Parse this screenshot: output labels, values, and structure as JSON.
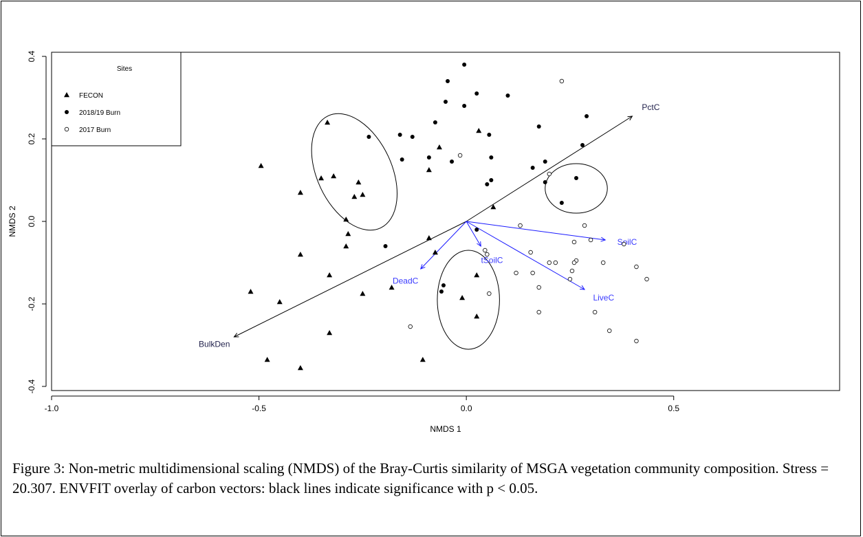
{
  "caption": "Figure 3: Non-metric multidimensional scaling (NMDS) of the Bray-Curtis similarity of MSGA vegetation community composition. Stress = 20.307. ENVFIT overlay of carbon vectors: black lines indicate significance with p < 0.05.",
  "chart_data": {
    "type": "scatter",
    "xlabel": "NMDS 1",
    "ylabel": "NMDS 2",
    "xlim": [
      -1.0,
      0.9
    ],
    "ylim": [
      -0.41,
      0.41
    ],
    "xticks": [
      {
        "value": -1.0,
        "label": "-1.0"
      },
      {
        "value": -0.5,
        "label": "-0.5"
      },
      {
        "value": 0.0,
        "label": "0.0"
      },
      {
        "value": 0.5,
        "label": "0.5"
      }
    ],
    "yticks": [
      {
        "value": -0.4,
        "label": "-0.4"
      },
      {
        "value": -0.2,
        "label": "-0.2"
      },
      {
        "value": 0.0,
        "label": "0.0"
      },
      {
        "value": 0.2,
        "label": "0.2"
      },
      {
        "value": 0.4,
        "label": "0.4"
      }
    ],
    "grid": false,
    "legend": {
      "title": "Sites",
      "position": "top-left",
      "entries": [
        {
          "label": "FECON",
          "marker": "triangle"
        },
        {
          "label": "2018/19 Burn",
          "marker": "filled-circle"
        },
        {
          "label": "2017 Burn",
          "marker": "open-circle"
        }
      ]
    },
    "series": [
      {
        "name": "FECON",
        "marker": "triangle",
        "points": [
          [
            -0.495,
            0.135
          ],
          [
            -0.335,
            0.24
          ],
          [
            -0.35,
            0.105
          ],
          [
            -0.32,
            0.11
          ],
          [
            -0.4,
            0.07
          ],
          [
            -0.26,
            0.095
          ],
          [
            -0.27,
            0.06
          ],
          [
            -0.25,
            0.065
          ],
          [
            -0.29,
            0.005
          ],
          [
            -0.285,
            -0.03
          ],
          [
            -0.29,
            -0.06
          ],
          [
            -0.4,
            -0.08
          ],
          [
            -0.33,
            -0.13
          ],
          [
            -0.52,
            -0.17
          ],
          [
            -0.45,
            -0.195
          ],
          [
            -0.25,
            -0.175
          ],
          [
            -0.33,
            -0.27
          ],
          [
            -0.48,
            -0.335
          ],
          [
            -0.4,
            -0.355
          ],
          [
            -0.18,
            -0.16
          ],
          [
            -0.09,
            -0.04
          ],
          [
            -0.075,
            -0.075
          ],
          [
            -0.105,
            -0.335
          ],
          [
            -0.01,
            -0.185
          ],
          [
            0.025,
            -0.13
          ],
          [
            0.025,
            -0.23
          ],
          [
            -0.09,
            0.125
          ],
          [
            -0.065,
            0.18
          ],
          [
            0.03,
            0.22
          ],
          [
            0.065,
            0.035
          ]
        ]
      },
      {
        "name": "2018/19 Burn",
        "marker": "filled-circle",
        "points": [
          [
            -0.005,
            0.38
          ],
          [
            -0.045,
            0.34
          ],
          [
            0.025,
            0.31
          ],
          [
            0.1,
            0.305
          ],
          [
            -0.05,
            0.29
          ],
          [
            -0.005,
            0.28
          ],
          [
            -0.075,
            0.24
          ],
          [
            0.055,
            0.21
          ],
          [
            -0.16,
            0.21
          ],
          [
            -0.13,
            0.205
          ],
          [
            -0.235,
            0.205
          ],
          [
            0.29,
            0.255
          ],
          [
            0.175,
            0.23
          ],
          [
            0.28,
            0.185
          ],
          [
            -0.155,
            0.15
          ],
          [
            -0.09,
            0.155
          ],
          [
            -0.035,
            0.145
          ],
          [
            0.06,
            0.155
          ],
          [
            0.19,
            0.145
          ],
          [
            0.16,
            0.13
          ],
          [
            0.265,
            0.105
          ],
          [
            0.06,
            0.1
          ],
          [
            0.05,
            0.09
          ],
          [
            0.19,
            0.095
          ],
          [
            0.23,
            0.045
          ],
          [
            0.025,
            -0.02
          ],
          [
            -0.195,
            -0.06
          ],
          [
            -0.055,
            -0.155
          ],
          [
            -0.06,
            -0.17
          ]
        ]
      },
      {
        "name": "2017 Burn",
        "marker": "open-circle",
        "points": [
          [
            0.23,
            0.34
          ],
          [
            -0.015,
            0.16
          ],
          [
            0.2,
            0.115
          ],
          [
            0.13,
            -0.01
          ],
          [
            0.285,
            -0.01
          ],
          [
            0.26,
            -0.05
          ],
          [
            0.3,
            -0.045
          ],
          [
            0.38,
            -0.055
          ],
          [
            0.045,
            -0.07
          ],
          [
            0.05,
            -0.08
          ],
          [
            0.155,
            -0.075
          ],
          [
            0.2,
            -0.1
          ],
          [
            0.215,
            -0.1
          ],
          [
            0.265,
            -0.095
          ],
          [
            0.26,
            -0.1
          ],
          [
            0.33,
            -0.1
          ],
          [
            0.41,
            -0.11
          ],
          [
            0.12,
            -0.125
          ],
          [
            0.16,
            -0.125
          ],
          [
            0.255,
            -0.12
          ],
          [
            0.25,
            -0.14
          ],
          [
            0.435,
            -0.14
          ],
          [
            0.175,
            -0.16
          ],
          [
            0.055,
            -0.175
          ],
          [
            0.175,
            -0.22
          ],
          [
            0.31,
            -0.22
          ],
          [
            -0.135,
            -0.255
          ],
          [
            0.345,
            -0.265
          ],
          [
            0.41,
            -0.29
          ]
        ]
      }
    ],
    "ellipses": [
      {
        "center": [
          -0.27,
          0.12
        ],
        "rx": 0.09,
        "ry": 0.15,
        "rotation_deg": -25,
        "color": "#000000"
      },
      {
        "center": [
          0.265,
          0.08
        ],
        "rx": 0.075,
        "ry": 0.06,
        "rotation_deg": 0,
        "color": "#000000"
      },
      {
        "center": [
          0.005,
          -0.19
        ],
        "rx": 0.075,
        "ry": 0.12,
        "rotation_deg": 0,
        "color": "#000000"
      }
    ],
    "vectors": [
      {
        "label": "PctC",
        "end": [
          0.4,
          0.255
        ],
        "color": "#000000",
        "label_color": "#1f1f4a",
        "significant": true
      },
      {
        "label": "BulkDen",
        "end": [
          -0.56,
          -0.28
        ],
        "color": "#000000",
        "label_color": "#1f1f4a",
        "significant": true
      },
      {
        "label": "SoilC",
        "end": [
          0.335,
          -0.045
        ],
        "color": "#1a1aff",
        "label_color": "#3a3aff",
        "significant": false
      },
      {
        "label": "LiveC",
        "end": [
          0.285,
          -0.165
        ],
        "color": "#1a1aff",
        "label_color": "#3a3aff",
        "significant": false
      },
      {
        "label": "DeadC",
        "end": [
          -0.11,
          -0.115
        ],
        "color": "#1a1aff",
        "label_color": "#3a3aff",
        "significant": false
      },
      {
        "label": "tSoilC",
        "end": [
          0.035,
          -0.06
        ],
        "color": "#1a1aff",
        "label_color": "#3a3aff",
        "significant": false
      }
    ]
  }
}
